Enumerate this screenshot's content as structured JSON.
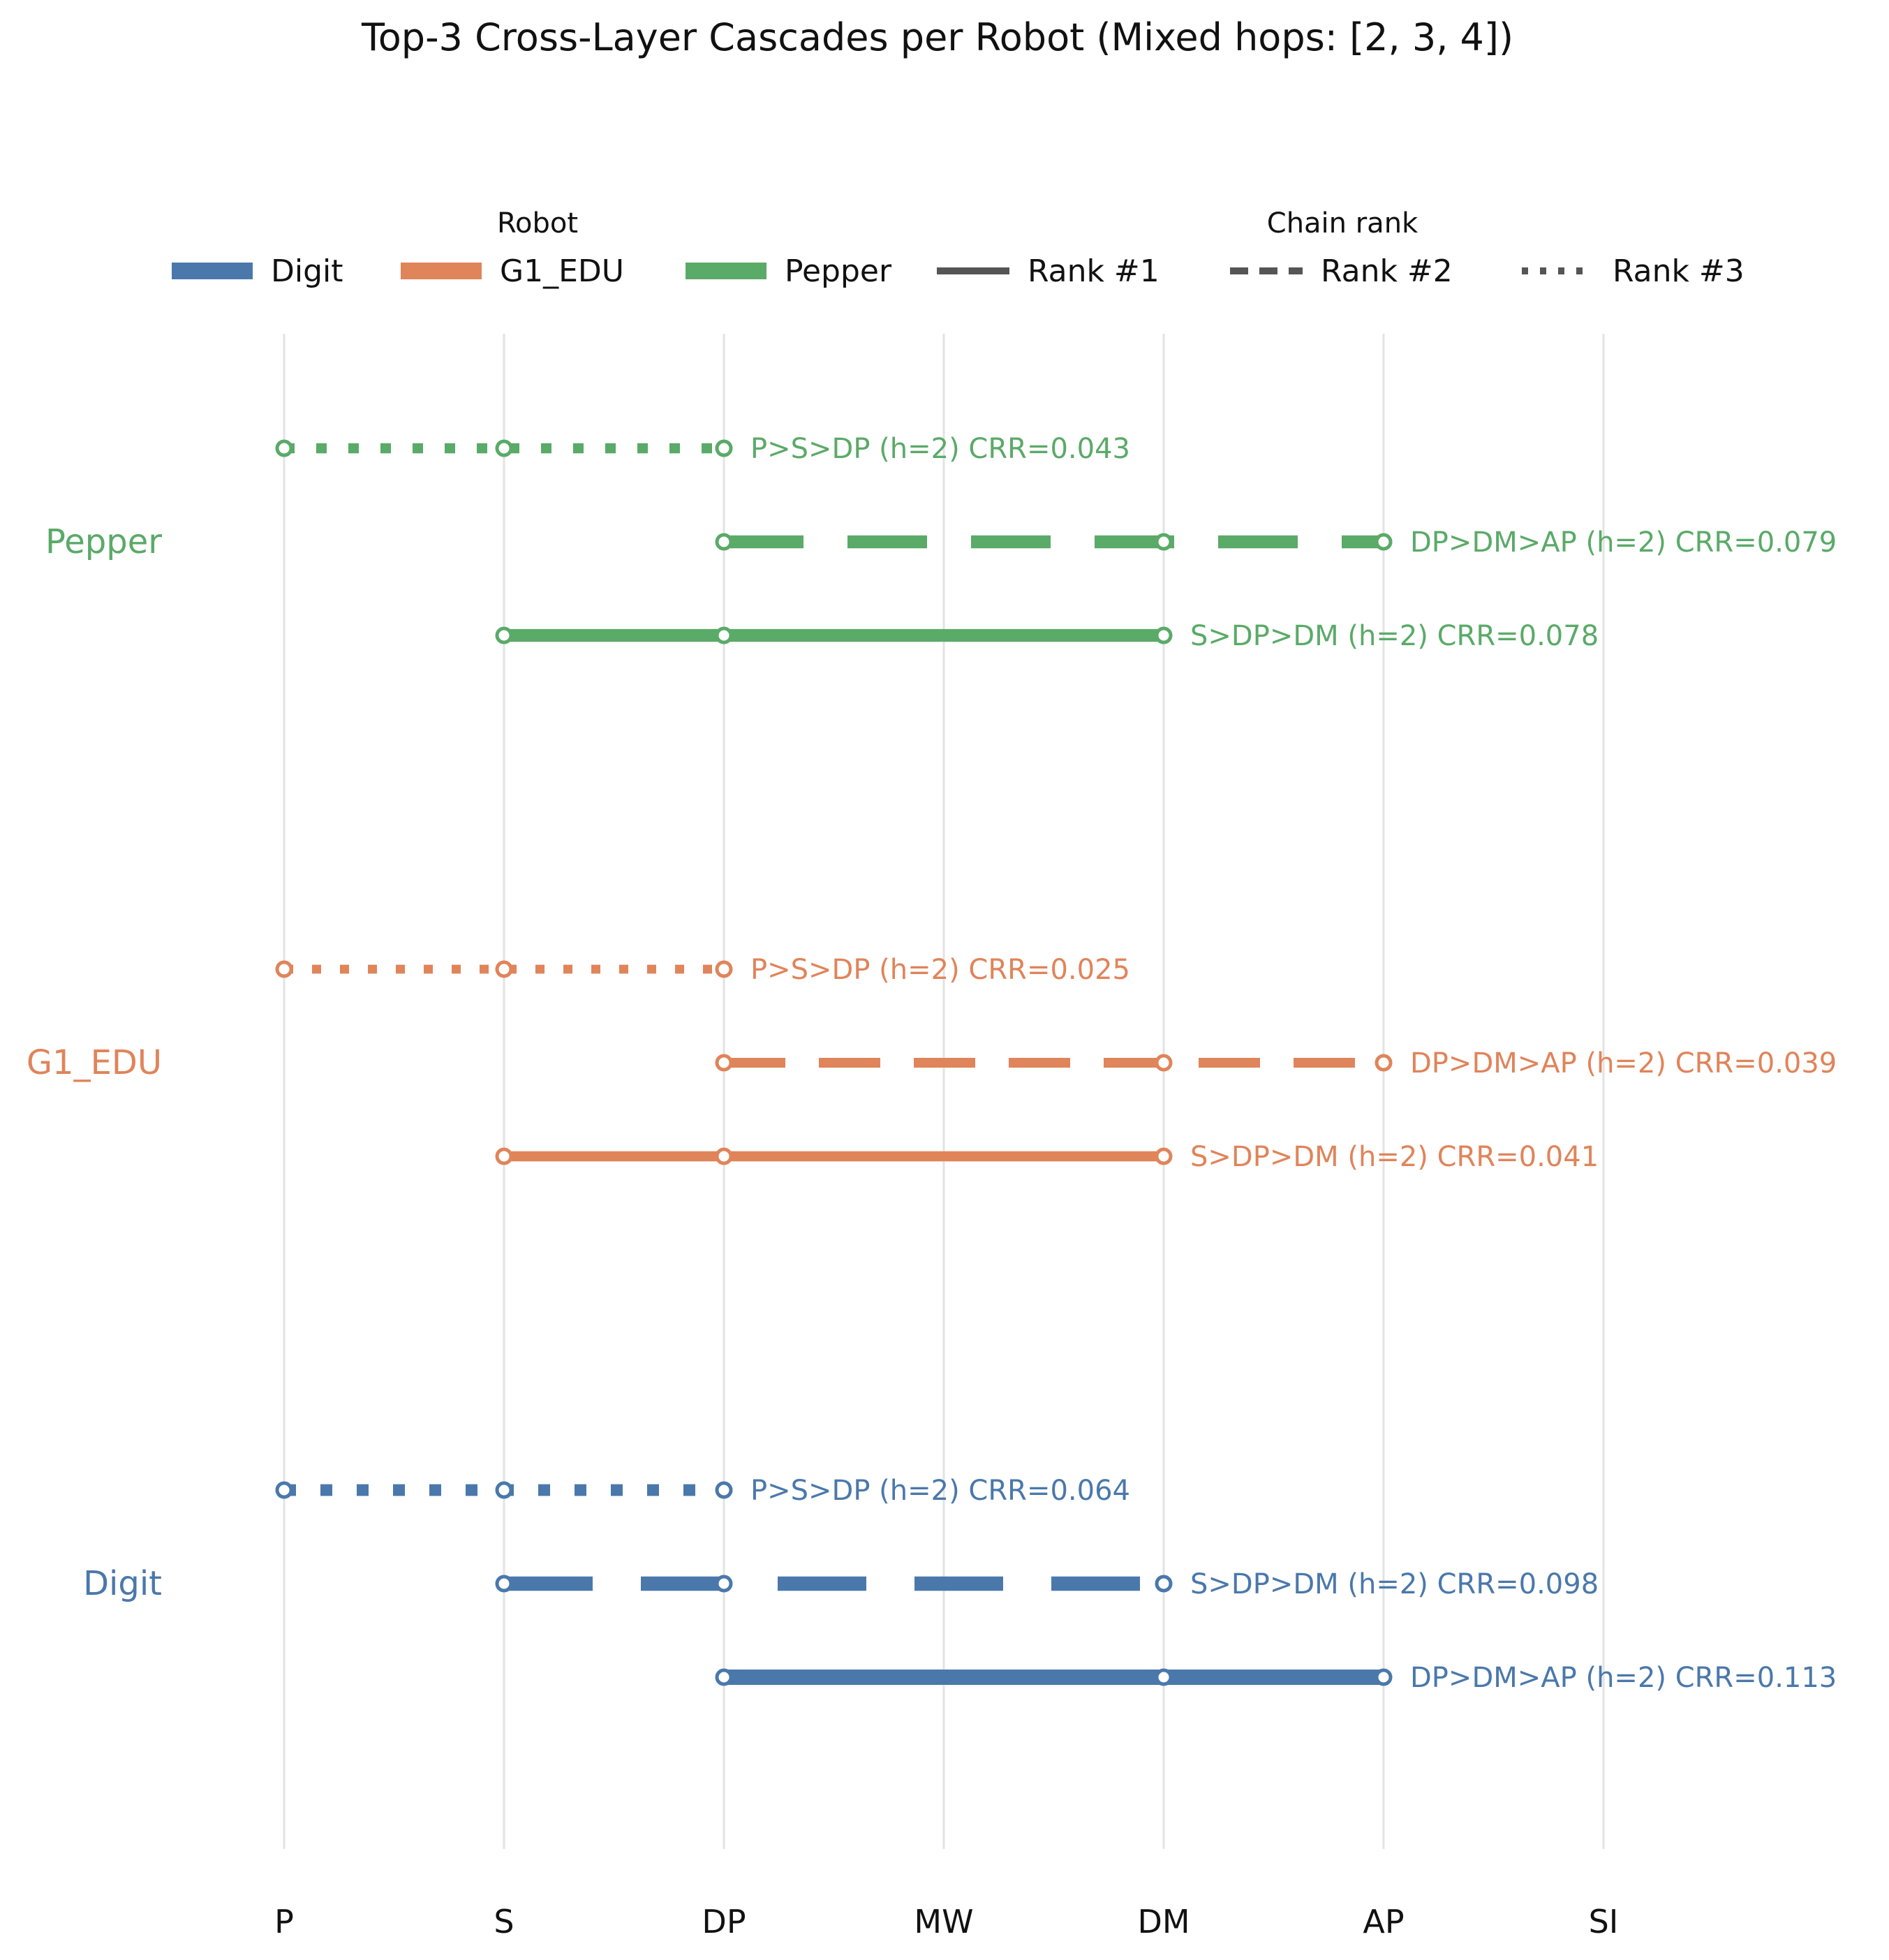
{
  "chart_data": {
    "type": "line",
    "title": "Top-3 Cross-Layer Cascades per Robot (Mixed hops: [2, 3, 4])",
    "x_categories": [
      "P",
      "S",
      "DP",
      "MW",
      "DM",
      "AP",
      "SI"
    ],
    "grid": true,
    "legend": {
      "placement": "top",
      "robot_title": "Robot",
      "robot_entries": [
        "Digit",
        "G1_EDU",
        "Pepper"
      ],
      "rank_title": "Chain rank",
      "rank_entries": [
        "Rank #1",
        "Rank #2",
        "Rank #3"
      ]
    },
    "colors": {
      "Digit": "#4a78ab",
      "G1_EDU": "#e0845a",
      "Pepper": "#5aaa68",
      "legend_rank": "#555555"
    },
    "robots": [
      {
        "name": "Pepper",
        "chains": [
          {
            "rank": 3,
            "path": [
              "P",
              "S",
              "DP"
            ],
            "label": "P>S>DP  (h=2)  CRR=0.043",
            "crr": 0.043
          },
          {
            "rank": 2,
            "path": [
              "DP",
              "DM",
              "AP"
            ],
            "label": "DP>DM>AP  (h=2)  CRR=0.079",
            "crr": 0.079
          },
          {
            "rank": 1,
            "path": [
              "S",
              "DP",
              "DM"
            ],
            "label": "S>DP>DM  (h=2)  CRR=0.078",
            "crr": 0.078
          }
        ]
      },
      {
        "name": "G1_EDU",
        "chains": [
          {
            "rank": 3,
            "path": [
              "P",
              "S",
              "DP"
            ],
            "label": "P>S>DP  (h=2)  CRR=0.025",
            "crr": 0.025
          },
          {
            "rank": 2,
            "path": [
              "DP",
              "DM",
              "AP"
            ],
            "label": "DP>DM>AP  (h=2)  CRR=0.039",
            "crr": 0.039
          },
          {
            "rank": 1,
            "path": [
              "S",
              "DP",
              "DM"
            ],
            "label": "S>DP>DM  (h=2)  CRR=0.041",
            "crr": 0.041
          }
        ]
      },
      {
        "name": "Digit",
        "chains": [
          {
            "rank": 3,
            "path": [
              "P",
              "S",
              "DP"
            ],
            "label": "P>S>DP  (h=2)  CRR=0.064",
            "crr": 0.064
          },
          {
            "rank": 2,
            "path": [
              "S",
              "DP",
              "DM"
            ],
            "label": "S>DP>DM  (h=2)  CRR=0.098",
            "crr": 0.098
          },
          {
            "rank": 1,
            "path": [
              "DP",
              "DM",
              "AP"
            ],
            "label": "DP>DM>AP  (h=2)  CRR=0.113",
            "crr": 0.113
          }
        ]
      }
    ]
  }
}
